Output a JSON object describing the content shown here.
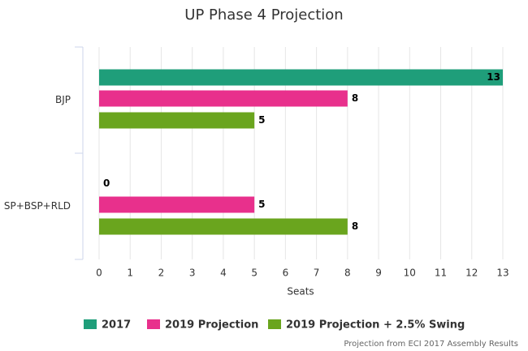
{
  "chart_data": {
    "type": "hbar",
    "title": "UP Phase 4 Projection",
    "categories": [
      "BJP",
      "SP+BSP+RLD"
    ],
    "series": [
      {
        "name": "2017",
        "color": "#1f9e7a",
        "values": [
          13,
          0
        ]
      },
      {
        "name": "2019 Projection",
        "color": "#e8308c",
        "values": [
          8,
          5
        ]
      },
      {
        "name": "2019 Projection + 2.5% Swing",
        "color": "#6aa51e",
        "values": [
          5,
          8
        ]
      }
    ],
    "x_label": "Seats",
    "xlim": [
      0,
      13
    ],
    "xticks": [
      0,
      1,
      2,
      3,
      4,
      5,
      6,
      7,
      8,
      9,
      10,
      11,
      12,
      13
    ],
    "grid": true,
    "credit": "Projection from ECI 2017 Assembly Results"
  }
}
